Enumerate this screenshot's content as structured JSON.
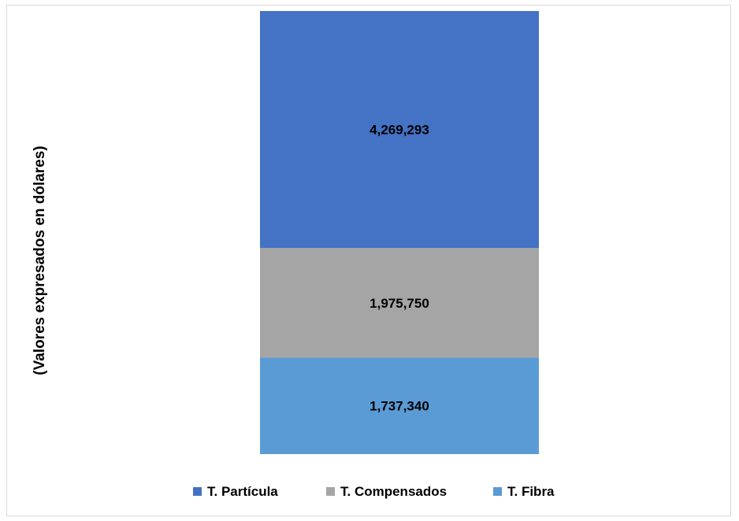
{
  "chart_data": {
    "type": "bar",
    "stacked": true,
    "title": "",
    "xlabel": "",
    "ylabel": "(Valores expresados en dólares)",
    "legend_position": "bottom",
    "grid": false,
    "series": [
      {
        "name": "T. Fibra",
        "value": 1737340,
        "label": "1,737,340",
        "color": "#5b9bd5"
      },
      {
        "name": "T. Compensados",
        "value": 1975750,
        "label": "1,975,750",
        "color": "#a5a5a5"
      },
      {
        "name": "T. Partícula",
        "value": 4269293,
        "label": "4,269,293",
        "color": "#4472c4"
      }
    ],
    "legend_order": [
      "T. Partícula",
      "T. Compensados",
      "T. Fibra"
    ]
  }
}
